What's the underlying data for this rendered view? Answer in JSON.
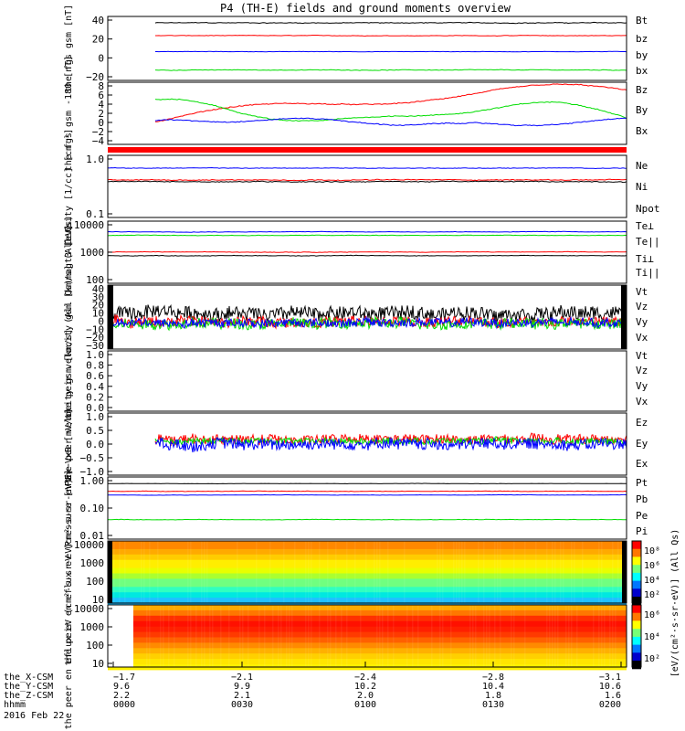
{
  "title": "P4 (TH-E) fields and ground moments overview",
  "chart_data": [
    {
      "type": "line",
      "ylabel": "the fgs gsm [nT]",
      "yticks": [
        "40",
        "20",
        "0",
        "−20"
      ],
      "ylim": [
        -35,
        45
      ],
      "series": [
        {
          "name": "Bt",
          "color": "#000000",
          "level": 37,
          "noise": 1.2
        },
        {
          "name": "bz",
          "color": "#ff0000",
          "level": 21,
          "noise": 0.8
        },
        {
          "name": "by",
          "color": "#00dd00",
          "level": -22,
          "noise": 1.0
        },
        {
          "name": "bx",
          "color": "#0000ff",
          "level": 1,
          "noise": 0.5
        }
      ]
    },
    {
      "type": "line",
      "ylabel": "the fgs gsm -180 [nT]",
      "yticks": [
        "8",
        "6",
        "4",
        "2",
        "0",
        "−2",
        "−4"
      ],
      "ylim": [
        -5,
        9
      ],
      "series": [
        {
          "name": "Bz",
          "color": "#ff0000",
          "level": 3,
          "noise": 0.3
        },
        {
          "name": "By",
          "color": "#00dd00",
          "level": 2,
          "noise": 0.3
        },
        {
          "name": "Bx",
          "color": "#0000ff",
          "level": 0,
          "noise": 0.3
        }
      ]
    },
    {
      "type": "line",
      "scale": "log",
      "ylabel": "Density [1/cc] [cm⁻³]",
      "yticks": [
        "1.0",
        "0.1"
      ],
      "ylim": [
        0.1,
        1.2
      ],
      "series": [
        {
          "name": "Ne",
          "color": "#ff0000",
          "level": 0.45,
          "noise": 0.02
        },
        {
          "name": "Ni",
          "color": "#000000",
          "level": 0.42,
          "noise": 0.02
        },
        {
          "name": "Npot",
          "color": "#0000ff",
          "level": 0.72,
          "noise": 0.02
        }
      ]
    },
    {
      "type": "line",
      "scale": "log",
      "ylabel": "magt3 [eV]",
      "yticks": [
        "10000",
        "1000",
        "100"
      ],
      "ylim": [
        100,
        14000
      ],
      "series": [
        {
          "name": "Te⊥",
          "color": "#ff0000",
          "level": 1200,
          "noise": 60
        },
        {
          "name": "Te||",
          "color": "#000000",
          "level": 900,
          "noise": 50
        },
        {
          "name": "Ti⊥",
          "color": "#0000ff",
          "level": 6000,
          "noise": 300
        },
        {
          "name": "Ti||",
          "color": "#00dd00",
          "level": 4500,
          "noise": 250
        }
      ]
    },
    {
      "type": "line",
      "ylabel": "the peir velocity gsm [km/s] (All Qs)",
      "yticks": [
        "40",
        "30",
        "20",
        "10",
        "0",
        "−10",
        "−20",
        "−30"
      ],
      "ylim": [
        -30,
        45
      ],
      "series": [
        {
          "name": "Vt",
          "color": "#000000",
          "level": 12,
          "noise": 8
        },
        {
          "name": "Vz",
          "color": "#ff0000",
          "level": 2,
          "noise": 6
        },
        {
          "name": "Vy",
          "color": "#00dd00",
          "level": 0,
          "noise": 6
        },
        {
          "name": "Vx",
          "color": "#0000ff",
          "level": 1,
          "noise": 5
        }
      ]
    },
    {
      "type": "line",
      "ylabel": "the peer velocity gsm [km/s] (All Qs)",
      "yticks": [
        "1.0",
        "0.8",
        "0.6",
        "0.4",
        "0.2",
        "0.0"
      ],
      "ylim": [
        0,
        1.0
      ],
      "series": [
        {
          "name": "Vt",
          "color": "#000000"
        },
        {
          "name": "Vz",
          "color": "#ff0000"
        },
        {
          "name": "Vy",
          "color": "#00dd00"
        },
        {
          "name": "Vx",
          "color": "#0000ff"
        }
      ]
    },
    {
      "type": "line",
      "ylabel": "E=−VxB [mV/m]",
      "yticks": [
        "1.0",
        "0.5",
        "0.0",
        "−0.5",
        "−1.0"
      ],
      "ylim": [
        -1.0,
        1.0
      ],
      "series": [
        {
          "name": "Ez",
          "color": "#ff0000",
          "level": 0.15,
          "noise": 0.15
        },
        {
          "name": "Ey",
          "color": "#00dd00",
          "level": 0.1,
          "noise": 0.1
        },
        {
          "name": "Ex",
          "color": "#0000ff",
          "level": 0.0,
          "noise": 0.18
        }
      ]
    },
    {
      "type": "line",
      "scale": "log",
      "ylabel": "Pressure [nPa]",
      "yticks": [
        "1.00",
        "0.10",
        "0.01"
      ],
      "ylim": [
        0.01,
        1.2
      ],
      "series": [
        {
          "name": "Pt",
          "color": "#000000",
          "level": 0.72,
          "noise": 0.02
        },
        {
          "name": "Pb",
          "color": "#ff0000",
          "level": 0.4,
          "noise": 0.02
        },
        {
          "name": "Pe",
          "color": "#00dd00",
          "level": 0.045,
          "noise": 0.002
        },
        {
          "name": "Pi",
          "color": "#0000ff",
          "level": 0.3,
          "noise": 0.01
        }
      ]
    },
    {
      "type": "heatmap",
      "ylabel": "the peir en eflux eV (cm²-s-sr-eV)",
      "yticks": [
        "10000",
        "1000",
        "100",
        "10"
      ],
      "scale": "log"
    },
    {
      "type": "heatmap",
      "ylabel": "the peer en eflux eV (cm²-s-sr-eV)",
      "yticks": [
        "10000",
        "1000",
        "100",
        "10"
      ],
      "scale": "log"
    }
  ],
  "colorbar": {
    "label": "[eV/(cm²·s·sr·eV)] (All Qs)",
    "ticks1": [
      "10⁸",
      "10⁶",
      "10⁴",
      "10²"
    ],
    "ticks2": [
      "10⁶",
      "10⁴",
      "10²"
    ]
  },
  "xaxis": {
    "rows": [
      {
        "label": "the_X-CSM",
        "values": [
          "−1.7",
          "−2.1",
          "−2.4",
          "−2.8",
          "−3.1"
        ]
      },
      {
        "label": "the_Y-CSM",
        "values": [
          "9.6",
          "9.9",
          "10.2",
          "10.4",
          "10.6"
        ]
      },
      {
        "label": "the_Z-CSM",
        "values": [
          "2.2",
          "2.1",
          "2.0",
          "1.8",
          "1.6"
        ]
      },
      {
        "label": "hhmm",
        "values": [
          "0000",
          "0030",
          "0100",
          "0130",
          "0200"
        ]
      }
    ],
    "date": "2016 Feb 22"
  }
}
